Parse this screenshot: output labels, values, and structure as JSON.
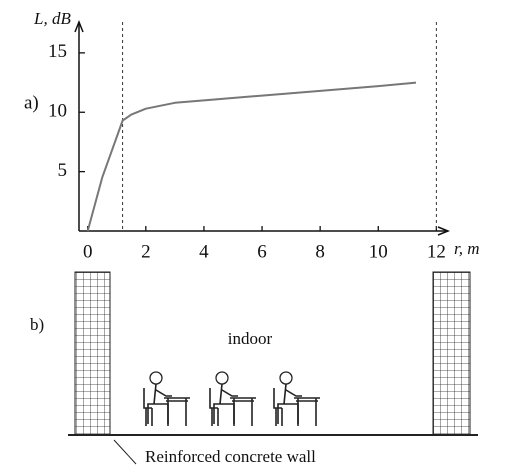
{
  "chart_data": {
    "type": "line",
    "panel_labels": [
      "a)",
      "b)"
    ],
    "ylabel": "L, dB",
    "xlabel": "r, m",
    "x": [
      0,
      0.5,
      1.2,
      1.5,
      2,
      3,
      4,
      6,
      8,
      10,
      11.3
    ],
    "values": [
      0,
      4.5,
      9.3,
      9.8,
      10.3,
      10.8,
      11.0,
      11.4,
      11.8,
      12.2,
      12.5
    ],
    "color": "#777777",
    "vlines": [
      1.2,
      12
    ],
    "xlim": [
      -0.3,
      12.4
    ],
    "ylim": [
      0,
      17.6
    ],
    "xticks": [
      0,
      2,
      4,
      6,
      8,
      10,
      12
    ],
    "yticks": [
      5,
      10,
      15
    ],
    "room_label": "indoor",
    "wall_label": "Reinforced concrete wall"
  }
}
